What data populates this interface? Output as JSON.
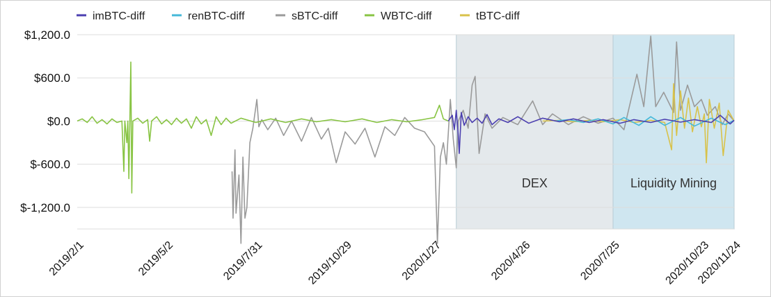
{
  "chart_data": {
    "type": "line",
    "title": "",
    "xlabel": "",
    "ylabel": "",
    "x_range": [
      "2019-02-01",
      "2020-11-24"
    ],
    "ylim": [
      -1500,
      1200
    ],
    "y_ticks": [
      1200,
      600,
      0,
      -600,
      -1200
    ],
    "y_tick_labels": [
      "$1,200.0",
      "$600.0",
      "$0.0",
      "$-600.0",
      "$-1,200.0"
    ],
    "x_ticks": [
      "2019-02-01",
      "2019-05-02",
      "2019-07-31",
      "2019-10-29",
      "2020-01-27",
      "2020-04-26",
      "2020-07-25",
      "2020-10-23",
      "2020-11-24"
    ],
    "x_tick_labels": [
      "2019/2/1",
      "2019/5/2",
      "2019/7/31",
      "2019/10/29",
      "2020/1/27",
      "2020/4/26",
      "2020/7/25",
      "2020/10/23",
      "2020/11/24"
    ],
    "grid": "horizontal",
    "legend_position": "top",
    "regions": [
      {
        "label": "DEX",
        "start": "2020-02-18",
        "end": "2020-07-25",
        "color": "#e4e9ec"
      },
      {
        "label": "Liquidity Mining",
        "start": "2020-07-25",
        "end": "2020-11-24",
        "color": "#cfe6f0"
      }
    ],
    "series": [
      {
        "name": "imBTC-diff",
        "color": "#4b3fb0",
        "points": [
          [
            "2020-02-10",
            0
          ],
          [
            "2020-02-14",
            80
          ],
          [
            "2020-02-16",
            -120
          ],
          [
            "2020-02-18",
            150
          ],
          [
            "2020-02-20",
            -200
          ],
          [
            "2020-02-21",
            -450
          ],
          [
            "2020-02-23",
            120
          ],
          [
            "2020-02-26",
            -60
          ],
          [
            "2020-03-01",
            60
          ],
          [
            "2020-03-05",
            -20
          ],
          [
            "2020-03-10",
            40
          ],
          [
            "2020-03-15",
            -30
          ],
          [
            "2020-03-20",
            90
          ],
          [
            "2020-03-25",
            -50
          ],
          [
            "2020-04-01",
            30
          ],
          [
            "2020-04-10",
            -20
          ],
          [
            "2020-04-20",
            60
          ],
          [
            "2020-05-01",
            -30
          ],
          [
            "2020-05-15",
            40
          ],
          [
            "2020-06-01",
            -10
          ],
          [
            "2020-06-15",
            30
          ],
          [
            "2020-07-01",
            -20
          ],
          [
            "2020-07-15",
            20
          ],
          [
            "2020-08-01",
            -30
          ],
          [
            "2020-08-15",
            20
          ],
          [
            "2020-09-01",
            -20
          ],
          [
            "2020-09-15",
            25
          ],
          [
            "2020-10-01",
            -15
          ],
          [
            "2020-10-15",
            20
          ],
          [
            "2020-11-01",
            -20
          ],
          [
            "2020-11-10",
            80
          ],
          [
            "2020-11-20",
            -40
          ],
          [
            "2020-11-24",
            10
          ]
        ]
      },
      {
        "name": "renBTC-diff",
        "color": "#44b8d8",
        "points": [
          [
            "2020-05-27",
            0
          ],
          [
            "2020-06-10",
            20
          ],
          [
            "2020-06-25",
            -20
          ],
          [
            "2020-07-10",
            30
          ],
          [
            "2020-07-25",
            -40
          ],
          [
            "2020-08-05",
            50
          ],
          [
            "2020-08-20",
            -60
          ],
          [
            "2020-09-01",
            60
          ],
          [
            "2020-09-15",
            -60
          ],
          [
            "2020-10-01",
            50
          ],
          [
            "2020-10-15",
            -70
          ],
          [
            "2020-11-01",
            40
          ],
          [
            "2020-11-15",
            -50
          ],
          [
            "2020-11-24",
            10
          ]
        ]
      },
      {
        "name": "sBTC-diff",
        "color": "#9a9a9a",
        "points": [
          [
            "2019-07-07",
            -700
          ],
          [
            "2019-07-08",
            -1350
          ],
          [
            "2019-07-10",
            -400
          ],
          [
            "2019-07-11",
            -1280
          ],
          [
            "2019-07-14",
            -750
          ],
          [
            "2019-07-16",
            -1700
          ],
          [
            "2019-07-18",
            -500
          ],
          [
            "2019-07-20",
            -1350
          ],
          [
            "2019-07-22",
            -1200
          ],
          [
            "2019-07-25",
            -300
          ],
          [
            "2019-07-28",
            -100
          ],
          [
            "2019-08-01",
            300
          ],
          [
            "2019-08-03",
            -80
          ],
          [
            "2019-08-06",
            20
          ],
          [
            "2019-08-12",
            -120
          ],
          [
            "2019-08-20",
            40
          ],
          [
            "2019-08-28",
            -200
          ],
          [
            "2019-09-05",
            0
          ],
          [
            "2019-09-15",
            -280
          ],
          [
            "2019-09-25",
            50
          ],
          [
            "2019-10-05",
            -250
          ],
          [
            "2019-10-12",
            -100
          ],
          [
            "2019-10-20",
            -580
          ],
          [
            "2019-10-29",
            -150
          ],
          [
            "2019-11-08",
            -320
          ],
          [
            "2019-11-18",
            -100
          ],
          [
            "2019-11-28",
            -500
          ],
          [
            "2019-12-08",
            -80
          ],
          [
            "2019-12-18",
            -200
          ],
          [
            "2019-12-28",
            50
          ],
          [
            "2020-01-07",
            -100
          ],
          [
            "2020-01-17",
            -150
          ],
          [
            "2020-01-27",
            -350
          ],
          [
            "2020-01-30",
            -1700
          ],
          [
            "2020-02-02",
            -500
          ],
          [
            "2020-02-05",
            -300
          ],
          [
            "2020-02-08",
            -600
          ],
          [
            "2020-02-12",
            300
          ],
          [
            "2020-02-15",
            -250
          ],
          [
            "2020-02-18",
            -650
          ],
          [
            "2020-02-20",
            0
          ],
          [
            "2020-02-25",
            150
          ],
          [
            "2020-03-01",
            -100
          ],
          [
            "2020-03-05",
            500
          ],
          [
            "2020-03-08",
            620
          ],
          [
            "2020-03-12",
            -450
          ],
          [
            "2020-03-18",
            100
          ],
          [
            "2020-03-25",
            -100
          ],
          [
            "2020-04-05",
            50
          ],
          [
            "2020-04-20",
            -50
          ],
          [
            "2020-05-05",
            280
          ],
          [
            "2020-05-15",
            -50
          ],
          [
            "2020-05-25",
            100
          ],
          [
            "2020-06-10",
            -50
          ],
          [
            "2020-06-25",
            60
          ],
          [
            "2020-07-10",
            -30
          ],
          [
            "2020-07-25",
            40
          ],
          [
            "2020-08-05",
            -120
          ],
          [
            "2020-08-18",
            650
          ],
          [
            "2020-08-25",
            200
          ],
          [
            "2020-09-01",
            1180
          ],
          [
            "2020-09-06",
            200
          ],
          [
            "2020-09-14",
            400
          ],
          [
            "2020-09-24",
            120
          ],
          [
            "2020-09-27",
            1100
          ],
          [
            "2020-10-01",
            150
          ],
          [
            "2020-10-08",
            500
          ],
          [
            "2020-10-15",
            200
          ],
          [
            "2020-10-22",
            300
          ],
          [
            "2020-10-28",
            80
          ],
          [
            "2020-11-05",
            200
          ],
          [
            "2020-11-12",
            -50
          ],
          [
            "2020-11-18",
            100
          ],
          [
            "2020-11-24",
            0
          ]
        ]
      },
      {
        "name": "WBTC-diff",
        "color": "#88c443",
        "points": [
          [
            "2019-02-01",
            0
          ],
          [
            "2019-02-06",
            30
          ],
          [
            "2019-02-11",
            -20
          ],
          [
            "2019-02-16",
            60
          ],
          [
            "2019-02-21",
            -30
          ],
          [
            "2019-02-26",
            20
          ],
          [
            "2019-03-03",
            -40
          ],
          [
            "2019-03-08",
            30
          ],
          [
            "2019-03-13",
            -20
          ],
          [
            "2019-03-18",
            0
          ],
          [
            "2019-03-20",
            -700
          ],
          [
            "2019-03-21",
            0
          ],
          [
            "2019-03-23",
            -300
          ],
          [
            "2019-03-24",
            0
          ],
          [
            "2019-03-25",
            -800
          ],
          [
            "2019-03-26",
            0
          ],
          [
            "2019-03-27",
            820
          ],
          [
            "2019-03-28",
            -1000
          ],
          [
            "2019-03-29",
            0
          ],
          [
            "2019-04-03",
            40
          ],
          [
            "2019-04-08",
            -30
          ],
          [
            "2019-04-13",
            20
          ],
          [
            "2019-04-15",
            -280
          ],
          [
            "2019-04-17",
            0
          ],
          [
            "2019-04-22",
            60
          ],
          [
            "2019-04-27",
            -40
          ],
          [
            "2019-05-02",
            20
          ],
          [
            "2019-05-07",
            -50
          ],
          [
            "2019-05-12",
            40
          ],
          [
            "2019-05-17",
            -30
          ],
          [
            "2019-05-22",
            30
          ],
          [
            "2019-05-27",
            -100
          ],
          [
            "2019-06-01",
            60
          ],
          [
            "2019-06-06",
            -40
          ],
          [
            "2019-06-11",
            20
          ],
          [
            "2019-06-16",
            -200
          ],
          [
            "2019-06-21",
            60
          ],
          [
            "2019-06-26",
            -50
          ],
          [
            "2019-07-01",
            40
          ],
          [
            "2019-07-06",
            -30
          ],
          [
            "2019-07-16",
            40
          ],
          [
            "2019-07-31",
            -20
          ],
          [
            "2019-08-15",
            30
          ],
          [
            "2019-08-30",
            -20
          ],
          [
            "2019-09-15",
            30
          ],
          [
            "2019-09-30",
            -10
          ],
          [
            "2019-10-15",
            20
          ],
          [
            "2019-10-29",
            -10
          ],
          [
            "2019-11-15",
            30
          ],
          [
            "2019-11-30",
            -20
          ],
          [
            "2019-12-15",
            20
          ],
          [
            "2019-12-30",
            -10
          ],
          [
            "2020-01-15",
            20
          ],
          [
            "2020-01-27",
            50
          ],
          [
            "2020-02-01",
            220
          ],
          [
            "2020-02-05",
            30
          ],
          [
            "2020-02-10",
            0
          ]
        ]
      },
      {
        "name": "tBTC-diff",
        "color": "#d8c24a",
        "points": [
          [
            "2020-05-15",
            0
          ],
          [
            "2020-06-01",
            10
          ],
          [
            "2020-06-15",
            -10
          ],
          [
            "2020-07-01",
            10
          ],
          [
            "2020-07-15",
            -10
          ],
          [
            "2020-08-01",
            20
          ],
          [
            "2020-08-15",
            -20
          ],
          [
            "2020-09-01",
            10
          ],
          [
            "2020-09-15",
            -20
          ],
          [
            "2020-09-22",
            -400
          ],
          [
            "2020-09-24",
            520
          ],
          [
            "2020-09-27",
            -200
          ],
          [
            "2020-10-01",
            420
          ],
          [
            "2020-10-05",
            -100
          ],
          [
            "2020-10-09",
            320
          ],
          [
            "2020-10-13",
            -150
          ],
          [
            "2020-10-18",
            200
          ],
          [
            "2020-10-22",
            -80
          ],
          [
            "2020-10-25",
            100
          ],
          [
            "2020-10-27",
            -580
          ],
          [
            "2020-10-30",
            300
          ],
          [
            "2020-11-04",
            -100
          ],
          [
            "2020-11-09",
            250
          ],
          [
            "2020-11-13",
            -480
          ],
          [
            "2020-11-18",
            150
          ],
          [
            "2020-11-24",
            0
          ]
        ]
      }
    ]
  }
}
